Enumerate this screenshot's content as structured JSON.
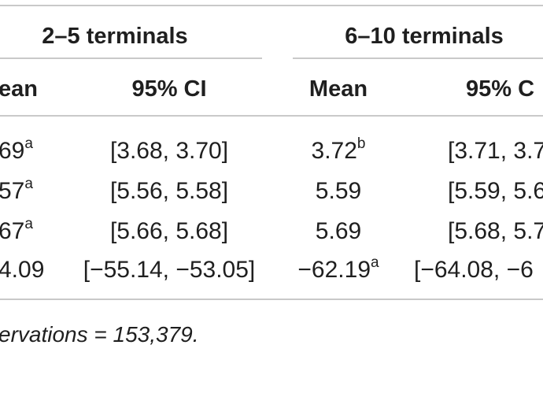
{
  "table": {
    "groups": [
      "2–5 terminals",
      "6–10 terminals"
    ],
    "subheaders": [
      "ean",
      "95% CI",
      "Mean",
      "95% C"
    ],
    "rows": [
      {
        "c1": "69",
        "c1_sup": "a",
        "c2": "[3.68, 3.70]",
        "c3": "3.72",
        "c3_sup": "b",
        "c4": "[3.71, 3.7"
      },
      {
        "c1": "57",
        "c1_sup": "a",
        "c2": "[5.56, 5.58]",
        "c3": "5.59",
        "c3_sup": "",
        "c4": "[5.59, 5.6"
      },
      {
        "c1": "67",
        "c1_sup": "a",
        "c2": "[5.66, 5.68]",
        "c3": "5.69",
        "c3_sup": "",
        "c4": "[5.68, 5.7"
      },
      {
        "c1": "4.09",
        "c1_sup": "",
        "c2": "[−55.14, −53.05]",
        "c3": "−62.19",
        "c3_sup": "a",
        "c4": "[−64.08, −6"
      }
    ],
    "footnote": "ervations = 153,379."
  }
}
